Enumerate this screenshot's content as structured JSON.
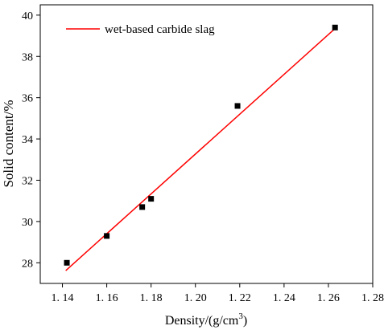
{
  "chart_data": {
    "type": "scatter",
    "title": "",
    "xlabel_main": "Density/(g/cm",
    "xlabel_sup": "3",
    "xlabel_close": ")",
    "ylabel": "Solid content/%",
    "xlim": [
      1.13,
      1.28
    ],
    "ylim": [
      27.0,
      40.5
    ],
    "x_ticks": [
      1.14,
      1.16,
      1.18,
      1.2,
      1.22,
      1.24,
      1.26,
      1.28
    ],
    "x_tick_labels": [
      "1. 14",
      "1. 16",
      "1. 18",
      "1. 20",
      "1. 22",
      "1. 24",
      "1. 26",
      "1. 28"
    ],
    "y_ticks": [
      28,
      30,
      32,
      34,
      36,
      38,
      40
    ],
    "y_tick_labels": [
      "28",
      "30",
      "32",
      "34",
      "36",
      "38",
      "40"
    ],
    "grid": false,
    "legend_position": "top-left",
    "series": [
      {
        "name": "wet-based carbide slag",
        "kind": "scatter",
        "color": "#000000",
        "x": [
          1.142,
          1.16,
          1.176,
          1.18,
          1.219,
          1.263
        ],
        "y": [
          28.0,
          29.3,
          30.7,
          31.1,
          35.6,
          39.4
        ]
      },
      {
        "name": "wet-based carbide slag",
        "kind": "fit-line",
        "color": "#ff0000",
        "x": [
          1.1415,
          1.2635
        ],
        "y": [
          27.62,
          39.4
        ]
      }
    ]
  }
}
